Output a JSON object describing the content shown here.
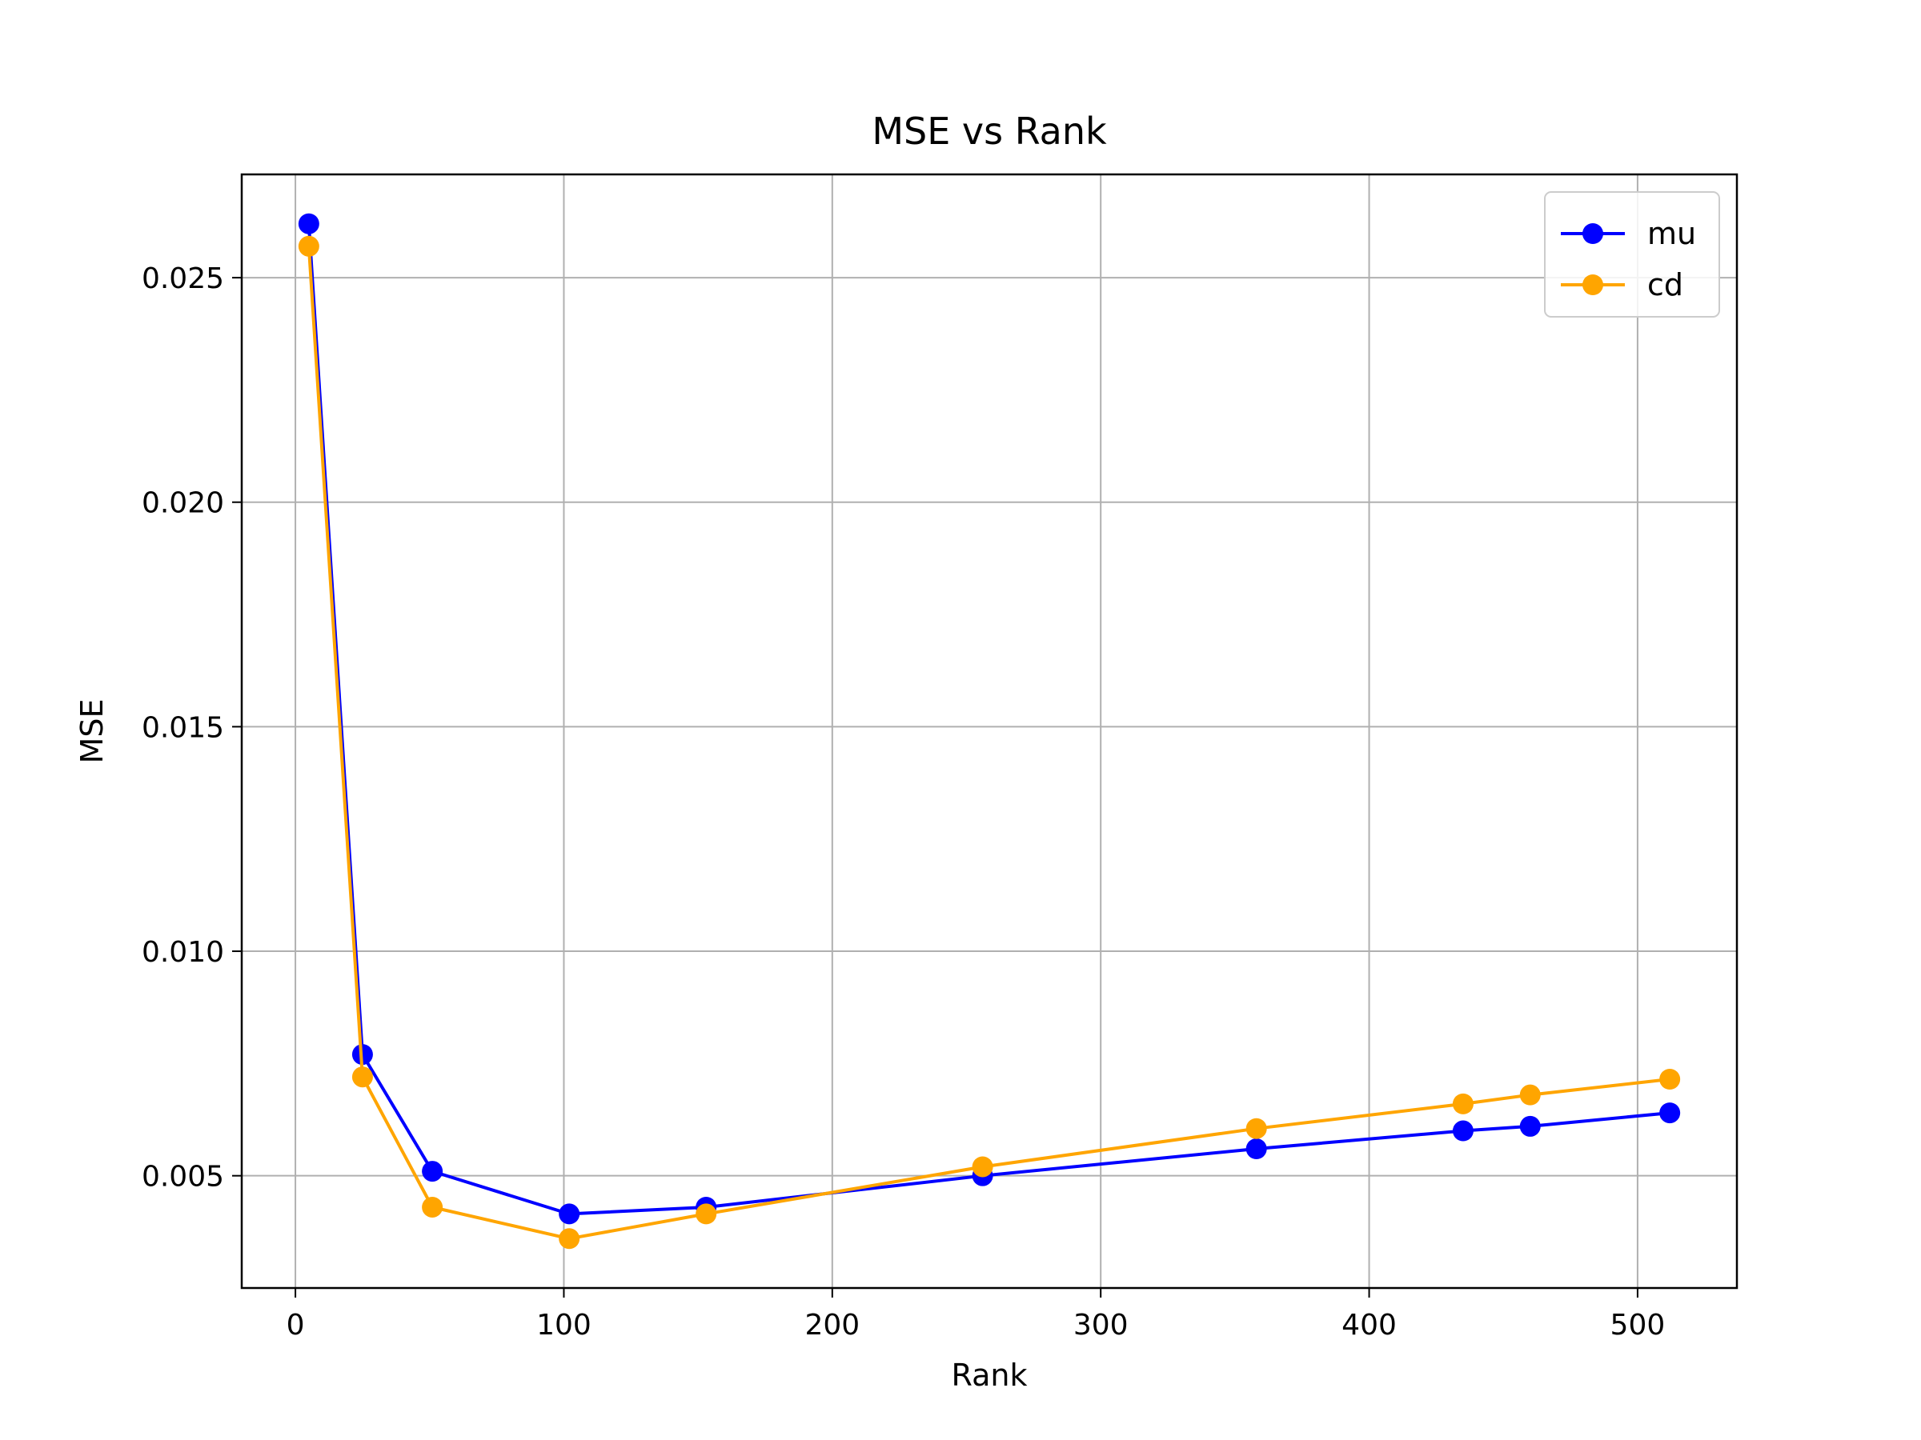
{
  "chart_data": {
    "type": "line",
    "title": "MSE vs Rank",
    "xlabel": "Rank",
    "ylabel": "MSE",
    "xlim": [
      -20,
      537
    ],
    "ylim": [
      0.0025,
      0.0273
    ],
    "xticks": [
      0,
      100,
      200,
      300,
      400,
      500
    ],
    "xtick_labels": [
      "0",
      "100",
      "200",
      "300",
      "400",
      "500"
    ],
    "yticks": [
      0.005,
      0.01,
      0.015,
      0.02,
      0.025
    ],
    "ytick_labels": [
      "0.005",
      "0.010",
      "0.015",
      "0.020",
      "0.025"
    ],
    "grid": true,
    "legend_position": "top-right",
    "series": [
      {
        "name": "mu",
        "color": "#0000ff",
        "marker": "circle",
        "x": [
          5,
          25,
          51,
          102,
          153,
          256,
          358,
          435,
          460,
          512
        ],
        "y": [
          0.0262,
          0.0077,
          0.0051,
          0.00415,
          0.0043,
          0.005,
          0.0056,
          0.006,
          0.0061,
          0.0064
        ]
      },
      {
        "name": "cd",
        "color": "#ffa500",
        "marker": "circle",
        "x": [
          5,
          25,
          51,
          102,
          153,
          256,
          358,
          435,
          460,
          512
        ],
        "y": [
          0.0257,
          0.0072,
          0.0043,
          0.0036,
          0.00415,
          0.0052,
          0.00605,
          0.0066,
          0.0068,
          0.00715
        ]
      }
    ]
  }
}
